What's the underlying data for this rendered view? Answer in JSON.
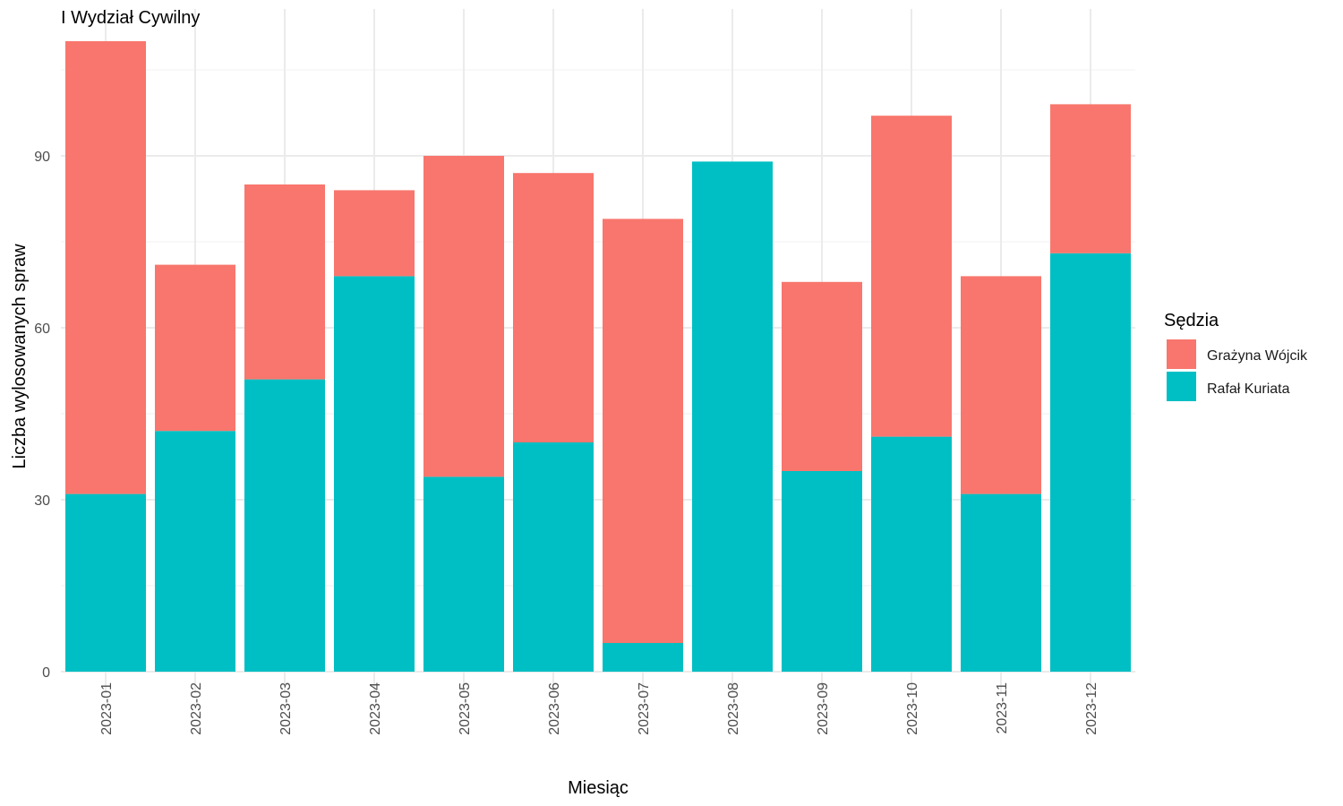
{
  "chart_data": {
    "type": "bar",
    "stacked": true,
    "title": "I Wydział Cywilny",
    "xlabel": "Miesiąc",
    "ylabel": "Liczba wylosowanych spraw",
    "categories": [
      "2023-01",
      "2023-02",
      "2023-03",
      "2023-04",
      "2023-05",
      "2023-06",
      "2023-07",
      "2023-08",
      "2023-09",
      "2023-10",
      "2023-11",
      "2023-12"
    ],
    "yticks": [
      0,
      30,
      60,
      90
    ],
    "ylim": [
      0,
      110
    ],
    "grid": true,
    "legend": {
      "title": "Sędzia",
      "placement": "right"
    },
    "series": [
      {
        "name": "Rafał Kuriata",
        "color": "#00BFC4",
        "values": [
          31,
          42,
          51,
          69,
          34,
          40,
          5,
          89,
          35,
          41,
          31,
          73
        ]
      },
      {
        "name": "Grażyna Wójcik",
        "color": "#F8766D",
        "values": [
          79,
          29,
          34,
          15,
          56,
          47,
          74,
          0,
          33,
          56,
          38,
          26
        ]
      }
    ]
  }
}
